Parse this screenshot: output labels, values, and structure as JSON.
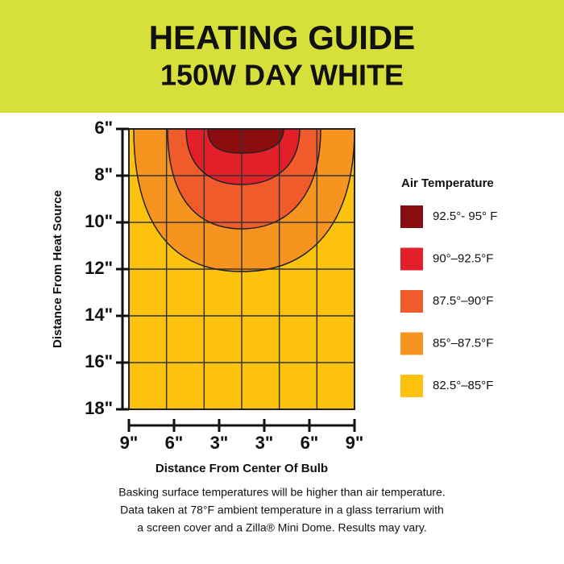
{
  "header": {
    "title": "HEATING GUIDE",
    "subtitle": "150W DAY WHITE"
  },
  "y_axis": {
    "label": "Distance From Heat Source",
    "ticks": [
      "6\"",
      "8\"",
      "10\"",
      "12\"",
      "14\"",
      "16\"",
      "18\""
    ]
  },
  "x_axis": {
    "label": "Distance From Center Of Bulb",
    "ticks": [
      "9\"",
      "6\"",
      "3\"",
      "3\"",
      "6\"",
      "9\""
    ]
  },
  "legend": {
    "title": "Air Temperature",
    "items": [
      {
        "label": "92.5°- 95° F",
        "color": "#8c0d0f"
      },
      {
        "label": "90°–92.5°F",
        "color": "#e3202a"
      },
      {
        "label": "87.5°–90°F",
        "color": "#f15a2a"
      },
      {
        "label": "85°–87.5°F",
        "color": "#f7941f"
      },
      {
        "label": "82.5°–85°F",
        "color": "#fdc20d"
      }
    ]
  },
  "footnote": [
    "Basking surface temperatures will be higher than air temperature.",
    "Data taken at 78°F ambient temperature in a glass terrarium with",
    "a screen cover and a Zilla® Mini Dome. Results may vary."
  ]
}
